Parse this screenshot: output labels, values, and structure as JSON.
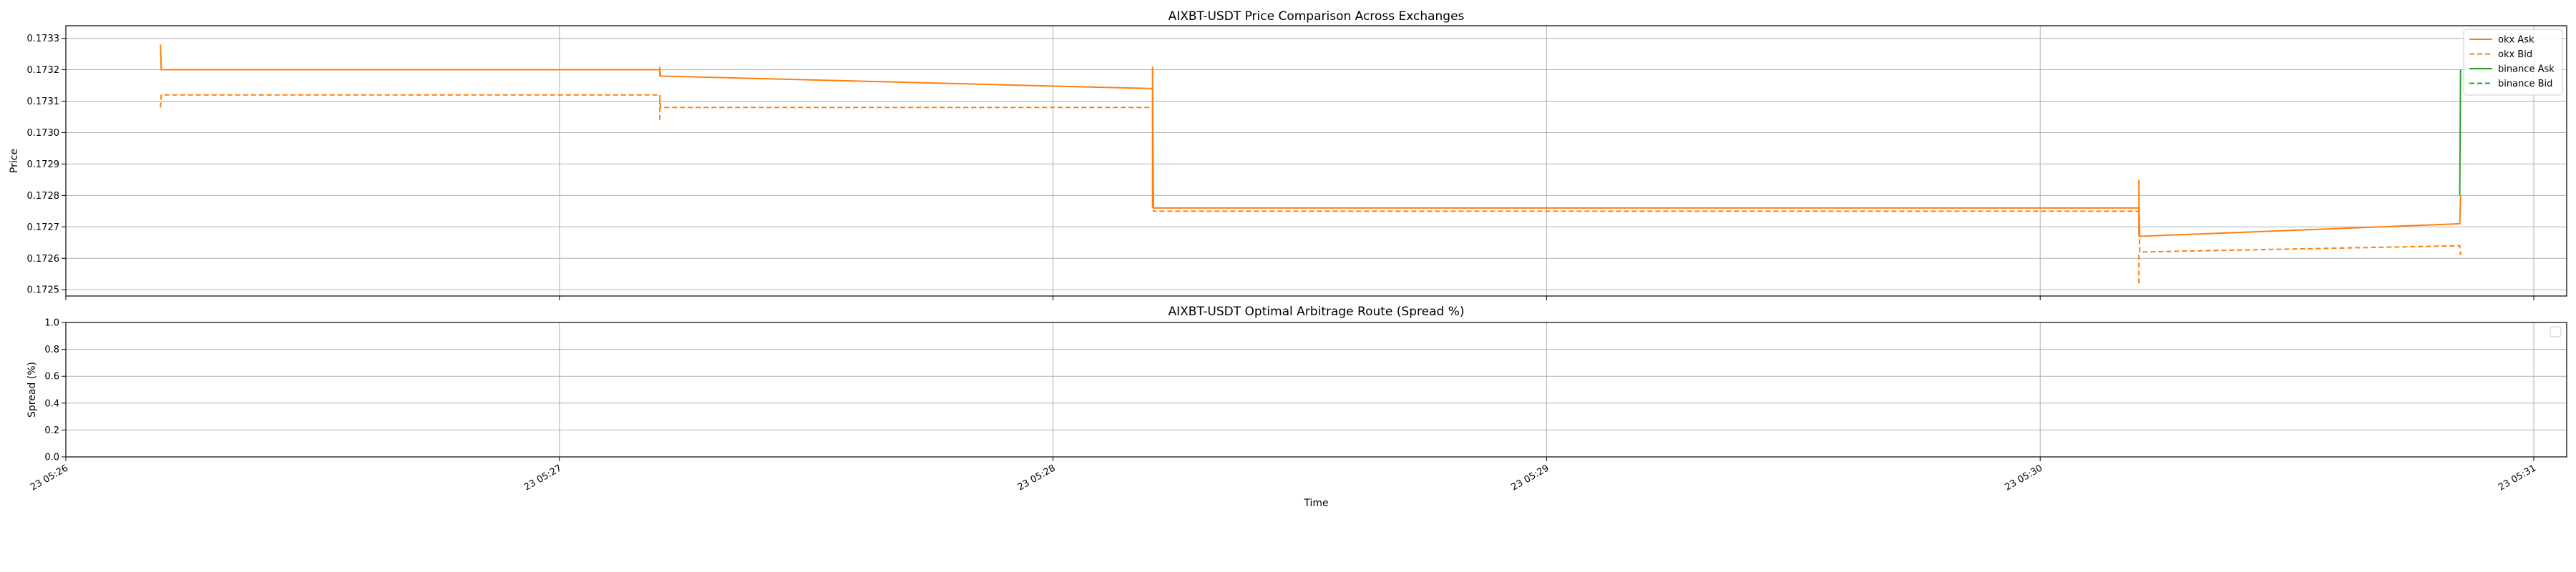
{
  "chart_data": [
    {
      "type": "line",
      "title": "AIXBT-USDT Price Comparison Across Exchanges",
      "xlabel": "",
      "ylabel": "Price",
      "ylim": [
        0.17248,
        0.17334
      ],
      "yticks": [
        "0.1725",
        "0.1726",
        "0.1727",
        "0.1728",
        "0.1729",
        "0.1730",
        "0.1731",
        "0.1732",
        "0.1733"
      ],
      "xlim": [
        "05:26:00",
        "05:31:04"
      ],
      "grid": true,
      "legend_position": "top-right",
      "legend": [
        "okx Ask",
        "okx Bid",
        "binance Ask",
        "binance Bid"
      ],
      "series": [
        {
          "name": "okx Ask",
          "exchange": "okx",
          "side": "ask",
          "color": "#ff7f0e",
          "dash": "solid",
          "x": [
            "05:26:11.5",
            "05:26:11.6",
            "05:27:12.2",
            "05:27:12.3",
            "05:28:12.1",
            "05:28:12.2",
            "05:30:12.0",
            "05:30:12.1",
            "05:30:51.0",
            "05:30:51.1"
          ],
          "y": [
            0.17328,
            0.1732,
            0.1732,
            0.17318,
            0.17314,
            0.17276,
            0.17276,
            0.17267,
            0.17271,
            0.1728
          ]
        },
        {
          "name": "okx Bid",
          "exchange": "okx",
          "side": "bid",
          "color": "#ff7f0e",
          "dash": "dashed",
          "x": [
            "05:26:11.5",
            "05:26:11.6",
            "05:27:12.2",
            "05:27:12.3",
            "05:28:12.1",
            "05:28:12.2",
            "05:30:12.0",
            "05:30:12.1",
            "05:30:51.0",
            "05:30:51.1"
          ],
          "y": [
            0.17308,
            0.17312,
            0.17312,
            0.17308,
            0.17308,
            0.17275,
            0.17275,
            0.17262,
            0.17264,
            0.17261
          ]
        },
        {
          "name": "binance Ask",
          "exchange": "binance",
          "side": "ask",
          "color": "#2ca02c",
          "dash": "solid",
          "x": [
            "05:30:51.0",
            "05:30:51.1"
          ],
          "y": [
            0.1728,
            0.1732
          ]
        },
        {
          "name": "binance Bid",
          "exchange": "binance",
          "side": "bid",
          "color": "#2ca02c",
          "dash": "dashed",
          "x": [],
          "y": []
        }
      ],
      "spikes": [
        {
          "series": "okx Ask",
          "x": "05:27:12.2",
          "y": [
            0.17318,
            0.17321
          ]
        },
        {
          "series": "okx Bid",
          "x": "05:27:12.2",
          "y": [
            0.17304,
            0.17312
          ]
        },
        {
          "series": "okx Ask",
          "x": "05:28:12.1",
          "y": [
            0.17276,
            0.17321
          ]
        },
        {
          "series": "okx Ask",
          "x": "05:30:12.0",
          "y": [
            0.17267,
            0.17285
          ]
        },
        {
          "series": "okx Bid",
          "x": "05:30:12.0",
          "y": [
            0.17252,
            0.17262
          ]
        }
      ]
    },
    {
      "type": "line",
      "title": "AIXBT-USDT Optimal Arbitrage Route (Spread %)",
      "xlabel": "Time",
      "ylabel": "Spread (%)",
      "ylim": [
        0,
        1
      ],
      "yticks": [
        "0.0",
        "0.2",
        "0.4",
        "0.6",
        "0.8",
        "1.0"
      ],
      "xlim": [
        "05:26:00",
        "05:31:04"
      ],
      "xticks": [
        "23 05:26",
        "23 05:27",
        "23 05:28",
        "23 05:29",
        "23 05:30",
        "23 05:31"
      ],
      "grid": true,
      "legend_position": "top-right",
      "series": []
    }
  ]
}
